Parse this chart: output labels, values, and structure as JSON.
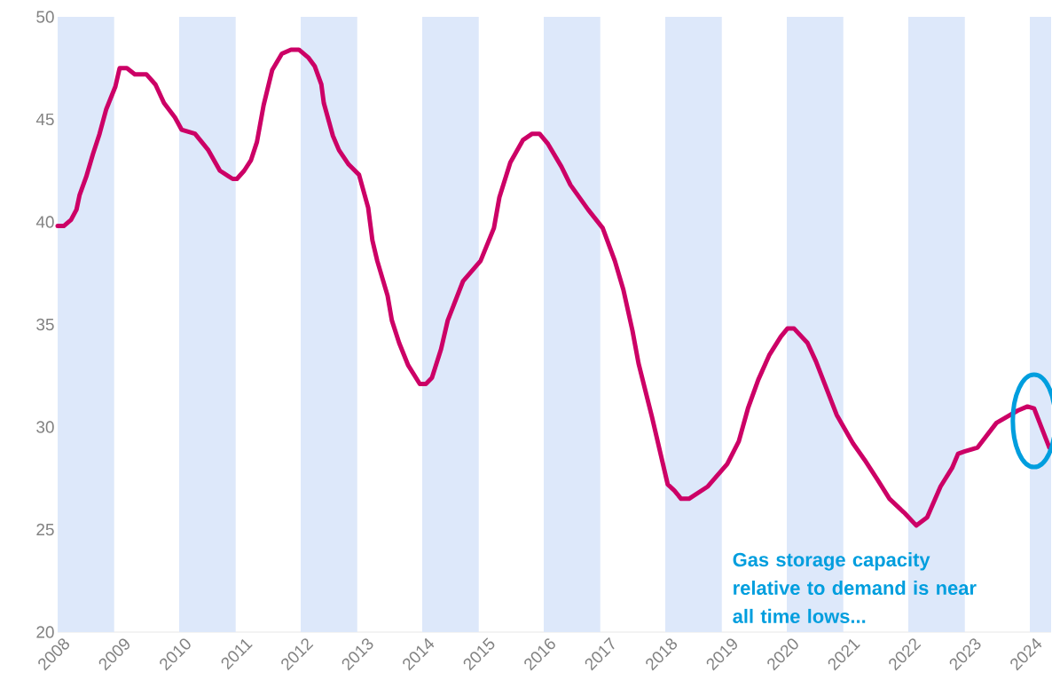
{
  "chart_data": {
    "type": "line",
    "x": [
      2008.0,
      2008.1,
      2008.22,
      2008.31,
      2008.36,
      2008.47,
      2008.58,
      2008.69,
      2008.8,
      2008.95,
      2009.02,
      2009.14,
      2009.27,
      2009.46,
      2009.61,
      2009.75,
      2009.93,
      2010.04,
      2010.15,
      2010.26,
      2010.48,
      2010.67,
      2010.88,
      2010.95,
      2011.07,
      2011.18,
      2011.28,
      2011.39,
      2011.53,
      2011.69,
      2011.84,
      2011.97,
      2012.13,
      2012.23,
      2012.34,
      2012.38,
      2012.53,
      2012.63,
      2012.79,
      2012.96,
      2013.11,
      2013.18,
      2013.26,
      2013.43,
      2013.5,
      2013.62,
      2013.77,
      2013.96,
      2014.06,
      2014.16,
      2014.31,
      2014.42,
      2014.67,
      2014.96,
      2015.18,
      2015.27,
      2015.45,
      2015.66,
      2015.81,
      2015.93,
      2016.07,
      2016.29,
      2016.44,
      2016.73,
      2016.97,
      2017.17,
      2017.31,
      2017.46,
      2017.56,
      2017.78,
      2018.04,
      2018.15,
      2018.26,
      2018.39,
      2018.7,
      2019.02,
      2019.21,
      2019.36,
      2019.53,
      2019.71,
      2019.9,
      2020.01,
      2020.12,
      2020.34,
      2020.48,
      2020.82,
      2021.09,
      2021.28,
      2021.5,
      2021.69,
      2021.94,
      2022.13,
      2022.31,
      2022.53,
      2022.72,
      2022.82,
      2022.92,
      2023.14,
      2023.45,
      2023.8,
      2023.96,
      2024.07,
      2024.32
    ],
    "series": [
      {
        "color": "#cc0066",
        "values": [
          39.8,
          39.8,
          40.1,
          40.6,
          41.3,
          42.2,
          43.3,
          44.3,
          45.5,
          46.6,
          47.5,
          47.5,
          47.2,
          47.2,
          46.7,
          45.8,
          45.1,
          44.5,
          44.4,
          44.3,
          43.5,
          42.5,
          42.1,
          42.1,
          42.5,
          43.0,
          43.9,
          45.7,
          47.4,
          48.2,
          48.4,
          48.4,
          48.0,
          47.6,
          46.7,
          45.8,
          44.2,
          43.5,
          42.8,
          42.3,
          40.7,
          39.1,
          38.1,
          36.4,
          35.2,
          34.1,
          33.0,
          32.1,
          32.1,
          32.4,
          33.8,
          35.2,
          37.1,
          38.1,
          39.7,
          41.2,
          42.9,
          44.0,
          44.3,
          44.3,
          43.8,
          42.7,
          41.8,
          40.6,
          39.7,
          38.1,
          36.7,
          34.7,
          33.1,
          30.5,
          27.2,
          26.9,
          26.5,
          26.5,
          27.1,
          28.2,
          29.3,
          30.9,
          32.3,
          33.5,
          34.4,
          34.8,
          34.8,
          34.1,
          33.2,
          30.6,
          29.2,
          28.4,
          27.4,
          26.5,
          25.8,
          25.2,
          25.6,
          27.1,
          28.0,
          28.7,
          28.8,
          29.0,
          30.2,
          30.8,
          31.0,
          30.9,
          29.0
        ]
      }
    ],
    "xlim": [
      2008,
      2024.35
    ],
    "ylim": [
      20,
      50
    ],
    "xticks": [
      2008,
      2009,
      2010,
      2011,
      2012,
      2013,
      2014,
      2015,
      2016,
      2017,
      2018,
      2019,
      2020,
      2021,
      2022,
      2023,
      2024
    ],
    "yticks": [
      20,
      25,
      30,
      35,
      40,
      45,
      50
    ],
    "bands": [
      {
        "axis": "x",
        "from": 2008,
        "to": 2008.93,
        "color": "#dde8fa"
      },
      {
        "axis": "x",
        "from": 2010,
        "to": 2010.93,
        "color": "#dde8fa"
      },
      {
        "axis": "x",
        "from": 2012,
        "to": 2012.93,
        "color": "#dde8fa"
      },
      {
        "axis": "x",
        "from": 2014,
        "to": 2014.93,
        "color": "#dde8fa"
      },
      {
        "axis": "x",
        "from": 2016,
        "to": 2016.93,
        "color": "#dde8fa"
      },
      {
        "axis": "x",
        "from": 2018,
        "to": 2018.93,
        "color": "#dde8fa"
      },
      {
        "axis": "x",
        "from": 2020,
        "to": 2020.93,
        "color": "#dde8fa"
      },
      {
        "axis": "x",
        "from": 2022,
        "to": 2022.93,
        "color": "#dde8fa"
      },
      {
        "axis": "x",
        "from": 2024,
        "to": 2024.35,
        "color": "#dde8fa"
      }
    ],
    "annotations": [
      "Gas storage capacity relative to demand is near all time lows..."
    ],
    "grid": false,
    "marker": "none",
    "line_style": "solid"
  }
}
